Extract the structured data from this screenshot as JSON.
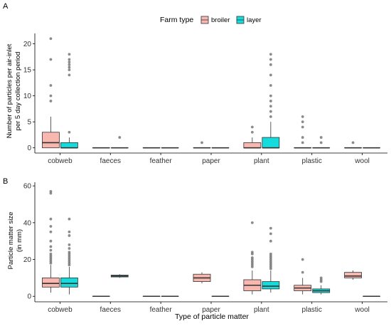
{
  "legend": {
    "title": "Farm type",
    "items": [
      "broiler",
      "layer"
    ]
  },
  "colors": {
    "broiler": "#f8b8b0",
    "layer": "#14dcdc",
    "outlier": "#777777",
    "axis": "#000000"
  },
  "x_label": "Type of particle matter",
  "chart_data": [
    {
      "type": "box",
      "panel": "A",
      "ylabel": [
        "Number of particles per air-inlet",
        "per 5 day collection period"
      ],
      "ylim": [
        -1,
        22
      ],
      "yticks": [
        0,
        5,
        10,
        15,
        20
      ],
      "categories": [
        "cobweb",
        "faeces",
        "feather",
        "paper",
        "plant",
        "plastic",
        "wool"
      ],
      "series": [
        {
          "name": "broiler",
          "boxes": [
            {
              "q1": 0,
              "median": 1,
              "q3": 3,
              "lo": 0,
              "hi": 6,
              "out": [
                9,
                10,
                12,
                17,
                21
              ]
            },
            {
              "q1": 0,
              "median": 0,
              "q3": 0,
              "lo": 0,
              "hi": 0,
              "out": []
            },
            {
              "q1": 0,
              "median": 0,
              "q3": 0,
              "lo": 0,
              "hi": 0,
              "out": []
            },
            {
              "q1": 0,
              "median": 0,
              "q3": 0,
              "lo": 0,
              "hi": 0,
              "out": [
                1
              ]
            },
            {
              "q1": 0,
              "median": 0,
              "q3": 1,
              "lo": 0,
              "hi": 2,
              "out": [
                3,
                4
              ]
            },
            {
              "q1": 0,
              "median": 0,
              "q3": 0,
              "lo": 0,
              "hi": 0,
              "out": [
                1,
                2,
                4,
                5,
                6
              ]
            },
            {
              "q1": 0,
              "median": 0,
              "q3": 0,
              "lo": 0,
              "hi": 0,
              "out": [
                1
              ]
            }
          ]
        },
        {
          "name": "layer",
          "boxes": [
            {
              "q1": 0,
              "median": 0,
              "q3": 1,
              "lo": 0,
              "hi": 2,
              "out": [
                3,
                14,
                15,
                15.5,
                16,
                16.5,
                17,
                18
              ]
            },
            {
              "q1": 0,
              "median": 0,
              "q3": 0,
              "lo": 0,
              "hi": 0,
              "out": [
                2
              ]
            },
            {
              "q1": 0,
              "median": 0,
              "q3": 0,
              "lo": 0,
              "hi": 0,
              "out": []
            },
            {
              "q1": 0,
              "median": 0,
              "q3": 0,
              "lo": 0,
              "hi": 0,
              "out": []
            },
            {
              "q1": 0,
              "median": 0,
              "q3": 2,
              "lo": 0,
              "hi": 5,
              "out": [
                6,
                7,
                8,
                9,
                10,
                12,
                14,
                16,
                17,
                18
              ]
            },
            {
              "q1": 0,
              "median": 0,
              "q3": 0,
              "lo": 0,
              "hi": 0,
              "out": [
                1,
                2
              ]
            },
            {
              "q1": 0,
              "median": 0,
              "q3": 0,
              "lo": 0,
              "hi": 0,
              "out": []
            }
          ]
        }
      ]
    },
    {
      "type": "box",
      "panel": "B",
      "ylabel": [
        "Particle matter size",
        "(in mm)"
      ],
      "ylim": [
        -3,
        62
      ],
      "yticks": [
        0,
        20,
        40,
        60
      ],
      "categories": [
        "cobweb",
        "faeces",
        "feather",
        "paper",
        "plant",
        "plastic",
        "wool"
      ],
      "series": [
        {
          "name": "broiler",
          "boxes": [
            {
              "q1": 5,
              "median": 7,
              "q3": 10,
              "lo": 2,
              "hi": 17,
              "out": [
                18,
                19,
                20,
                21,
                22,
                23,
                25,
                27,
                30,
                35,
                38,
                42,
                56,
                57
              ]
            },
            {
              "q1": 0,
              "median": 0,
              "q3": 0,
              "lo": 0,
              "hi": 0,
              "out": []
            },
            {
              "q1": 0,
              "median": 0,
              "q3": 0,
              "lo": 0,
              "hi": 0,
              "out": []
            },
            {
              "q1": 8,
              "median": 10,
              "q3": 12,
              "lo": 7,
              "hi": 13,
              "out": []
            },
            {
              "q1": 3,
              "median": 6,
              "q3": 9,
              "lo": 1,
              "hi": 14,
              "out": [
                16,
                17,
                18,
                19,
                20,
                21,
                23,
                24,
                40
              ]
            },
            {
              "q1": 3,
              "median": 4.5,
              "q3": 6,
              "lo": 1,
              "hi": 10,
              "out": [
                13,
                20
              ]
            },
            {
              "q1": 10,
              "median": 11,
              "q3": 13,
              "lo": 9,
              "hi": 14,
              "out": []
            }
          ]
        },
        {
          "name": "layer",
          "boxes": [
            {
              "q1": 5,
              "median": 7,
              "q3": 10,
              "lo": 1,
              "hi": 16,
              "out": [
                17,
                18,
                19,
                20,
                21,
                22,
                23,
                24,
                26,
                28,
                33,
                35,
                42
              ]
            },
            {
              "q1": 10.5,
              "median": 11,
              "q3": 11.5,
              "lo": 10,
              "hi": 12,
              "out": []
            },
            {
              "q1": 0,
              "median": 0,
              "q3": 0,
              "lo": 0,
              "hi": 0,
              "out": []
            },
            {
              "q1": 0,
              "median": 0,
              "q3": 0,
              "lo": 0,
              "hi": 0,
              "out": []
            },
            {
              "q1": 4,
              "median": 5.5,
              "q3": 8,
              "lo": 2,
              "hi": 14,
              "out": [
                15,
                16,
                17,
                18,
                19,
                20,
                21,
                22,
                23,
                30,
                34,
                37
              ]
            },
            {
              "q1": 2,
              "median": 3,
              "q3": 4,
              "lo": 1,
              "hi": 6,
              "out": [
                8,
                9,
                10
              ]
            },
            {
              "q1": 0,
              "median": 0,
              "q3": 0,
              "lo": 0,
              "hi": 0,
              "out": []
            }
          ]
        }
      ]
    }
  ]
}
